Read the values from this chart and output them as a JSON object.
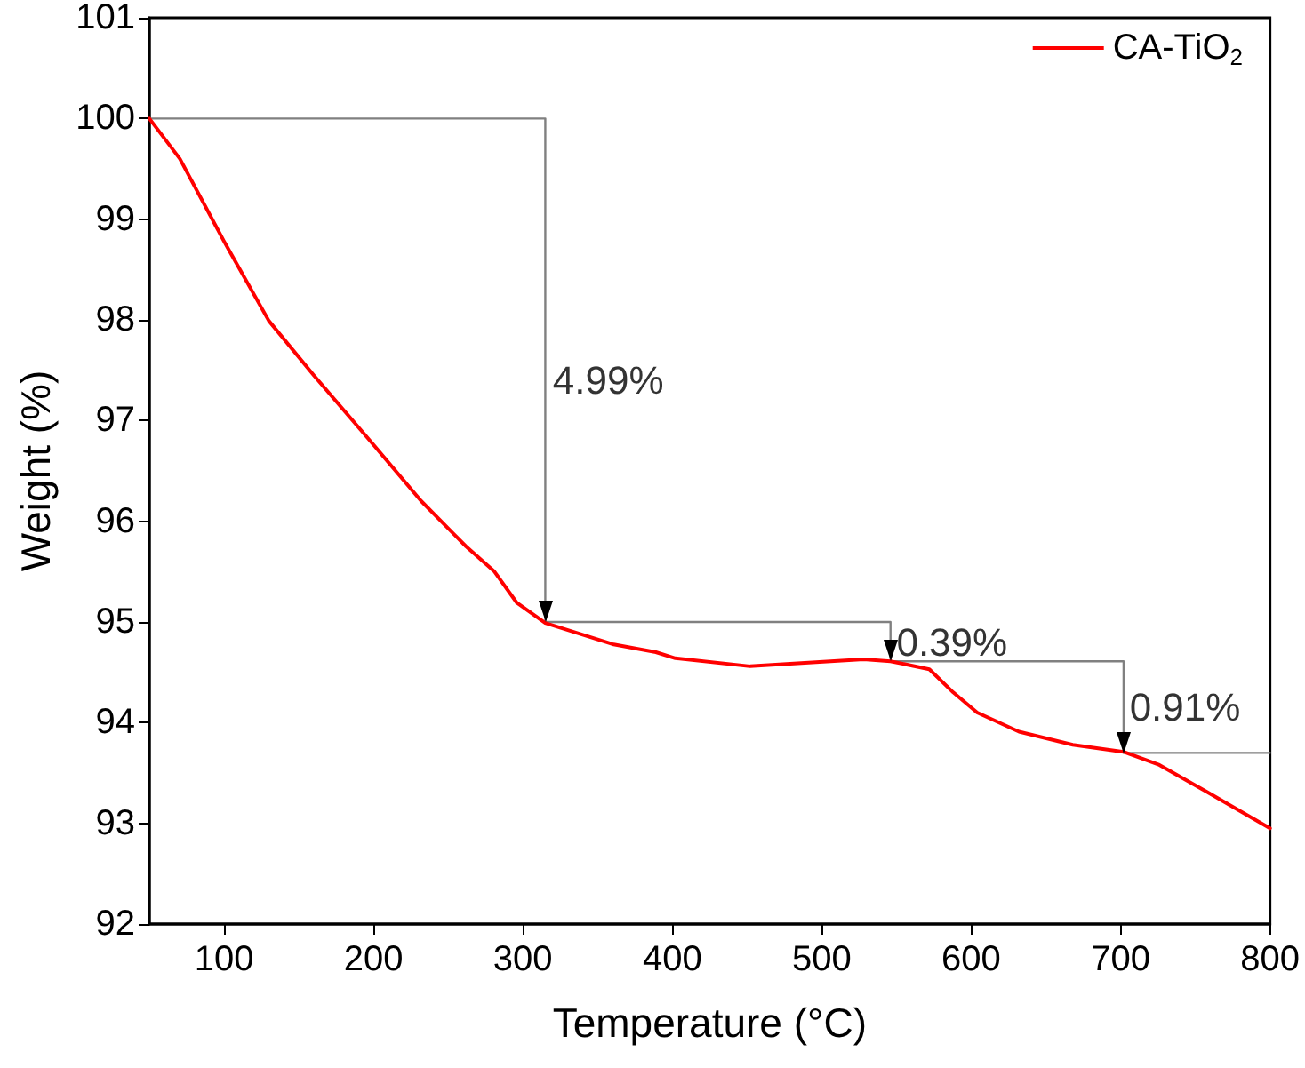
{
  "chart_data": {
    "type": "line",
    "xlabel": "Temperature (°C)",
    "ylabel": "Weight (%)",
    "xlim": [
      50,
      800
    ],
    "xticks": [
      100,
      200,
      300,
      400,
      500,
      600,
      700,
      800
    ],
    "ylim": [
      92,
      101
    ],
    "yticks": [
      92,
      93,
      94,
      95,
      96,
      97,
      98,
      99,
      100,
      101
    ],
    "grid": false,
    "legend": "top right",
    "line_style": "solid",
    "series": [
      {
        "name": "CA-TiO$_{2}$",
        "color": "#ff0000",
        "x": [
          50,
          70.4,
          100,
          130,
          160,
          200,
          232,
          262,
          281,
          296,
          315,
          360,
          389,
          402,
          452,
          496,
          528,
          546,
          572,
          588,
          604,
          632,
          668,
          702,
          726,
          758,
          800
        ],
        "values": [
          100,
          99.6,
          98.78,
          97.99,
          97.45,
          96.76,
          96.2,
          95.75,
          95.5,
          95.19,
          94.99,
          94.78,
          94.7,
          94.64,
          94.56,
          94.6,
          94.63,
          94.61,
          94.53,
          94.3,
          94.1,
          93.91,
          93.78,
          93.71,
          93.58,
          93.31,
          92.95
        ]
      },
      {
        "color": "#808080",
        "x": [
          50,
          315,
          315,
          546,
          546,
          702,
          702,
          800
        ],
        "values": [
          100,
          100,
          95,
          95,
          94.61,
          94.61,
          93.7,
          93.7
        ]
      }
    ],
    "annotations": [
      {
        "text": "4.99%",
        "x": 320,
        "y": 97.4
      },
      {
        "text": "0.39%",
        "x": 550,
        "y": 94.8
      },
      {
        "text": "0.91%",
        "x": 706,
        "y": 94.15
      }
    ]
  }
}
